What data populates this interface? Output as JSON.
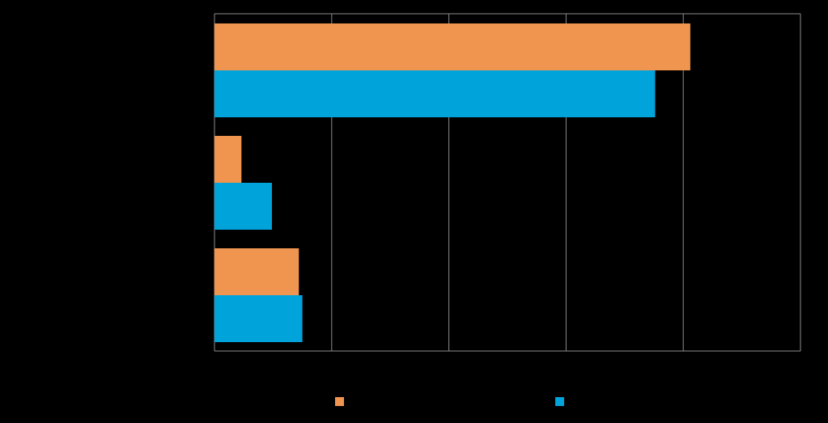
{
  "chart_data": {
    "type": "barh",
    "categories": [
      null,
      null,
      null
    ],
    "series": [
      {
        "color": "#f0954f",
        "values": [
          4.06,
          0.23,
          0.72
        ]
      },
      {
        "color": "#00a3da",
        "values": [
          3.76,
          0.49,
          0.75
        ]
      }
    ],
    "xlim": [
      0,
      5
    ],
    "xticks": [
      0,
      1,
      2,
      3,
      4,
      5
    ],
    "grid": true,
    "legend": "bottom"
  }
}
